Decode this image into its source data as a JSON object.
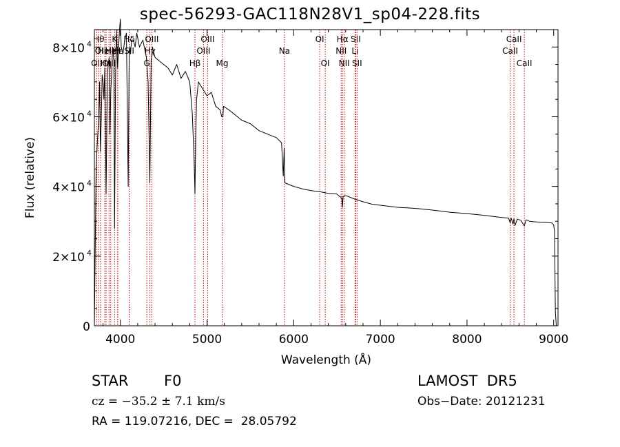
{
  "chart_data": {
    "type": "line",
    "title": "spec-56293-GAC118N28V1_sp04-228.fits",
    "xlabel": "Wavelength (Å)",
    "ylabel": "Flux (relative)",
    "xlim": [
      3700,
      9050
    ],
    "ylim": [
      0,
      85000
    ],
    "x_ticks": [
      4000,
      5000,
      6000,
      7000,
      8000,
      9000
    ],
    "x_tick_labels": [
      "4000",
      "5000",
      "6000",
      "7000",
      "8000",
      "9000"
    ],
    "y_ticks": [
      0,
      20000,
      40000,
      60000,
      80000
    ],
    "y_tick_labels": [
      {
        "base": "0",
        "exp": ""
      },
      {
        "base": "2×10",
        "exp": "4"
      },
      {
        "base": "4×10",
        "exp": "4"
      },
      {
        "base": "6×10",
        "exp": "4"
      },
      {
        "base": "8×10",
        "exp": "4"
      }
    ],
    "series": [
      {
        "color": "#000000",
        "x": [
          3700,
          3720,
          3735,
          3750,
          3760,
          3770,
          3780,
          3790,
          3800,
          3810,
          3820,
          3835,
          3850,
          3860,
          3870,
          3880,
          3890,
          3900,
          3910,
          3925,
          3933,
          3945,
          3955,
          3968,
          3980,
          3990,
          4000,
          4010,
          4030,
          4050,
          4070,
          4090,
          4102,
          4115,
          4130,
          4150,
          4170,
          4190,
          4220,
          4260,
          4300,
          4320,
          4340,
          4355,
          4370,
          4400,
          4450,
          4500,
          4550,
          4600,
          4650,
          4700,
          4750,
          4800,
          4830,
          4850,
          4861,
          4870,
          4880,
          4900,
          4950,
          5000,
          5050,
          5100,
          5150,
          5170,
          5183,
          5190,
          5250,
          5300,
          5400,
          5500,
          5600,
          5700,
          5800,
          5860,
          5880,
          5890,
          5896,
          5900,
          5950,
          6000,
          6100,
          6200,
          6300,
          6400,
          6500,
          6520,
          6540,
          6556,
          6563,
          6570,
          6590,
          6620,
          6700,
          6800,
          6900,
          7000,
          7200,
          7400,
          7600,
          7800,
          8000,
          8200,
          8400,
          8480,
          8498,
          8510,
          8530,
          8542,
          8555,
          8580,
          8620,
          8662,
          8680,
          8720,
          8800,
          8900,
          8980,
          9000,
          9010,
          9015,
          9020,
          9030
        ],
        "y": [
          0,
          45000,
          53000,
          60000,
          70000,
          50000,
          60000,
          72000,
          70000,
          65000,
          74000,
          38000,
          72000,
          75000,
          77000,
          55000,
          68000,
          72000,
          80000,
          76000,
          28000,
          72000,
          85000,
          74000,
          80000,
          85000,
          88000,
          80000,
          78000,
          82000,
          84000,
          40000,
          80000,
          78000,
          82000,
          82000,
          80000,
          84000,
          80000,
          82000,
          77000,
          70000,
          41000,
          76000,
          80000,
          77000,
          76000,
          75000,
          74000,
          72000,
          75000,
          71000,
          73000,
          70000,
          61000,
          48000,
          38000,
          55000,
          65000,
          70000,
          68000,
          66000,
          67000,
          63000,
          62000,
          60000,
          60000,
          63000,
          62000,
          61000,
          59000,
          58000,
          56000,
          55000,
          54000,
          52500,
          43000,
          51000,
          44000,
          41000,
          40500,
          40000,
          39300,
          38800,
          38500,
          38000,
          37800,
          37300,
          37000,
          36500,
          34000,
          37000,
          37400,
          37200,
          36400,
          35600,
          34900,
          34600,
          34000,
          33700,
          33200,
          32600,
          32200,
          31700,
          31100,
          30900,
          29500,
          30900,
          29200,
          30700,
          28800,
          30600,
          30300,
          28600,
          30400,
          30000,
          29800,
          29700,
          29500,
          29000,
          27000,
          15000,
          4000,
          0
        ]
      }
    ],
    "line_markers": [
      {
        "wave": 3727,
        "label": "OII",
        "row": 3
      },
      {
        "wave": 3750,
        "label": "Hθ",
        "row": 1
      },
      {
        "wave": 3771,
        "label": "OII",
        "row": 2
      },
      {
        "wave": 3820,
        "label": "HeI",
        "row": 2
      },
      {
        "wave": 3835,
        "label": "Hη",
        "row": 3
      },
      {
        "wave": 3869,
        "label": "OIII",
        "row": 3
      },
      {
        "wave": 3889,
        "label": "He",
        "row": 2
      },
      {
        "wave": 3933,
        "label": "K",
        "row": 1
      },
      {
        "wave": 3968,
        "label": "H",
        "row": 2
      },
      {
        "wave": 3970,
        "label": "Hε",
        "row": 2
      },
      {
        "wave": 4102,
        "label": "Hδ",
        "row": 1
      },
      {
        "wave": 4102,
        "label": "SII",
        "row": 2
      },
      {
        "wave": 4305,
        "label": "G",
        "row": 3
      },
      {
        "wave": 4341,
        "label": "Hγ",
        "row": 2
      },
      {
        "wave": 4363,
        "label": "OIII",
        "row": 1
      },
      {
        "wave": 4861,
        "label": "Hβ",
        "row": 3
      },
      {
        "wave": 4959,
        "label": "OIII",
        "row": 2
      },
      {
        "wave": 5007,
        "label": "OIII",
        "row": 1
      },
      {
        "wave": 5175,
        "label": "Mg",
        "row": 3
      },
      {
        "wave": 5893,
        "label": "Na",
        "row": 2
      },
      {
        "wave": 6300,
        "label": "OI",
        "row": 1
      },
      {
        "wave": 6364,
        "label": "OI",
        "row": 3
      },
      {
        "wave": 6548,
        "label": "NII",
        "row": 2
      },
      {
        "wave": 6563,
        "label": "Hα",
        "row": 1
      },
      {
        "wave": 6583,
        "label": "NII",
        "row": 3
      },
      {
        "wave": 6708,
        "label": "Li",
        "row": 2
      },
      {
        "wave": 6716,
        "label": "SII",
        "row": 1
      },
      {
        "wave": 6731,
        "label": "SII",
        "row": 3
      },
      {
        "wave": 8498,
        "label": "CaII",
        "row": 2
      },
      {
        "wave": 8542,
        "label": "CaII",
        "row": 1
      },
      {
        "wave": 8662,
        "label": "CaII",
        "row": 3
      }
    ],
    "grid": false,
    "legend": "none"
  },
  "info": {
    "class_label": "STAR",
    "subclass": "F0",
    "survey": "LAMOST  DR5",
    "cz": "cz = −35.2 ± 7.1 km/s",
    "obs_date": "Obs−Date: 20121231",
    "coords": "RA = 119.07216, DEC =  28.05792"
  }
}
